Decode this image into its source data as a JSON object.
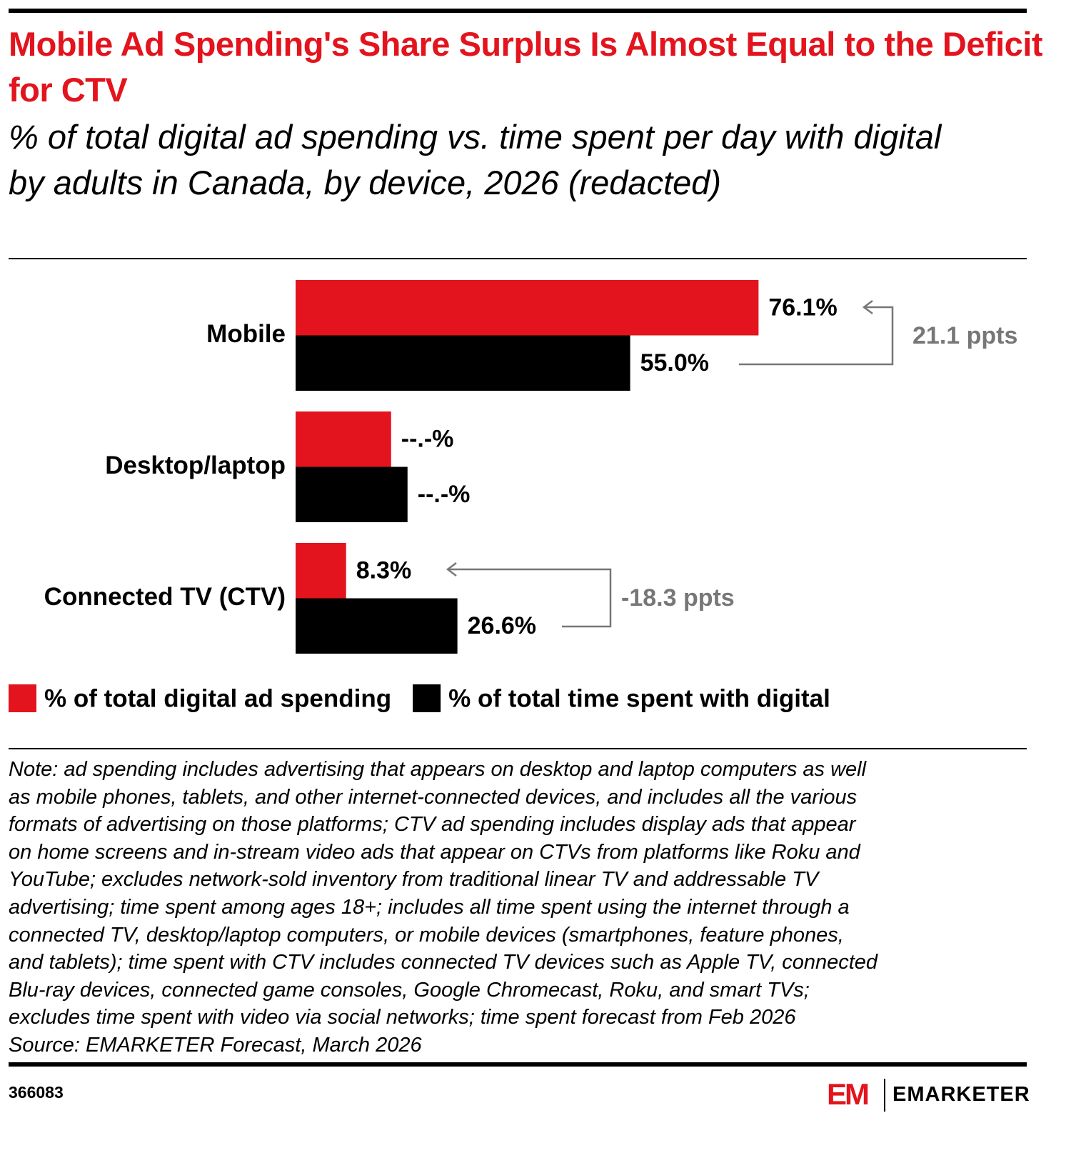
{
  "chart_data": {
    "type": "bar",
    "orientation": "horizontal",
    "title": "Mobile Ad Spending's Share Surplus Is Almost Equal to the Deficit for CTV",
    "subtitle": "% of total digital ad spending vs. time spent per day with digital by adults in Canada, by device, 2026 (redacted)",
    "categories": [
      "Mobile",
      "Desktop/laptop",
      "Connected TV (CTV)"
    ],
    "series": [
      {
        "name": "% of total digital ad spending",
        "color": "#e3141d",
        "values": [
          76.1,
          15.7,
          8.3
        ],
        "value_labels": [
          "76.1%",
          "--.-%",
          "8.3%"
        ]
      },
      {
        "name": "% of total time spent with digital",
        "color": "#000000",
        "values": [
          55.0,
          18.4,
          26.6
        ],
        "value_labels": [
          "55.0%",
          "--.-%",
          "26.6%"
        ]
      }
    ],
    "annotations": [
      "21.1 ppts",
      "-18.3 ppts"
    ],
    "note": [
      "Note: ad spending includes advertising that appears on desktop and laptop computers as well",
      "as mobile phones, tablets, and other internet-connected devices, and includes all the various",
      "formats of advertising on those platforms; CTV ad spending includes display ads that appear",
      "on home screens and in-stream video ads that appear on CTVs from platforms like Roku and",
      "YouTube; excludes network-sold inventory from traditional linear TV and addressable TV",
      "advertising; time spent among ages 18+; includes all time spent using the internet through a",
      "connected TV, desktop/laptop computers, or mobile devices (smartphones, feature phones,",
      "and tablets); time spent with CTV includes connected TV devices such as Apple TV, connected",
      "Blu-ray devices, connected game consoles, Google Chromecast, Roku, and smart TVs;",
      "excludes time spent with video via social networks; time spent forecast from Feb 2026"
    ],
    "source": "Source: EMARKETER Forecast, March 2026",
    "chart_id": "366083",
    "logo_mark": "EM",
    "brand": "EMARKETER"
  }
}
